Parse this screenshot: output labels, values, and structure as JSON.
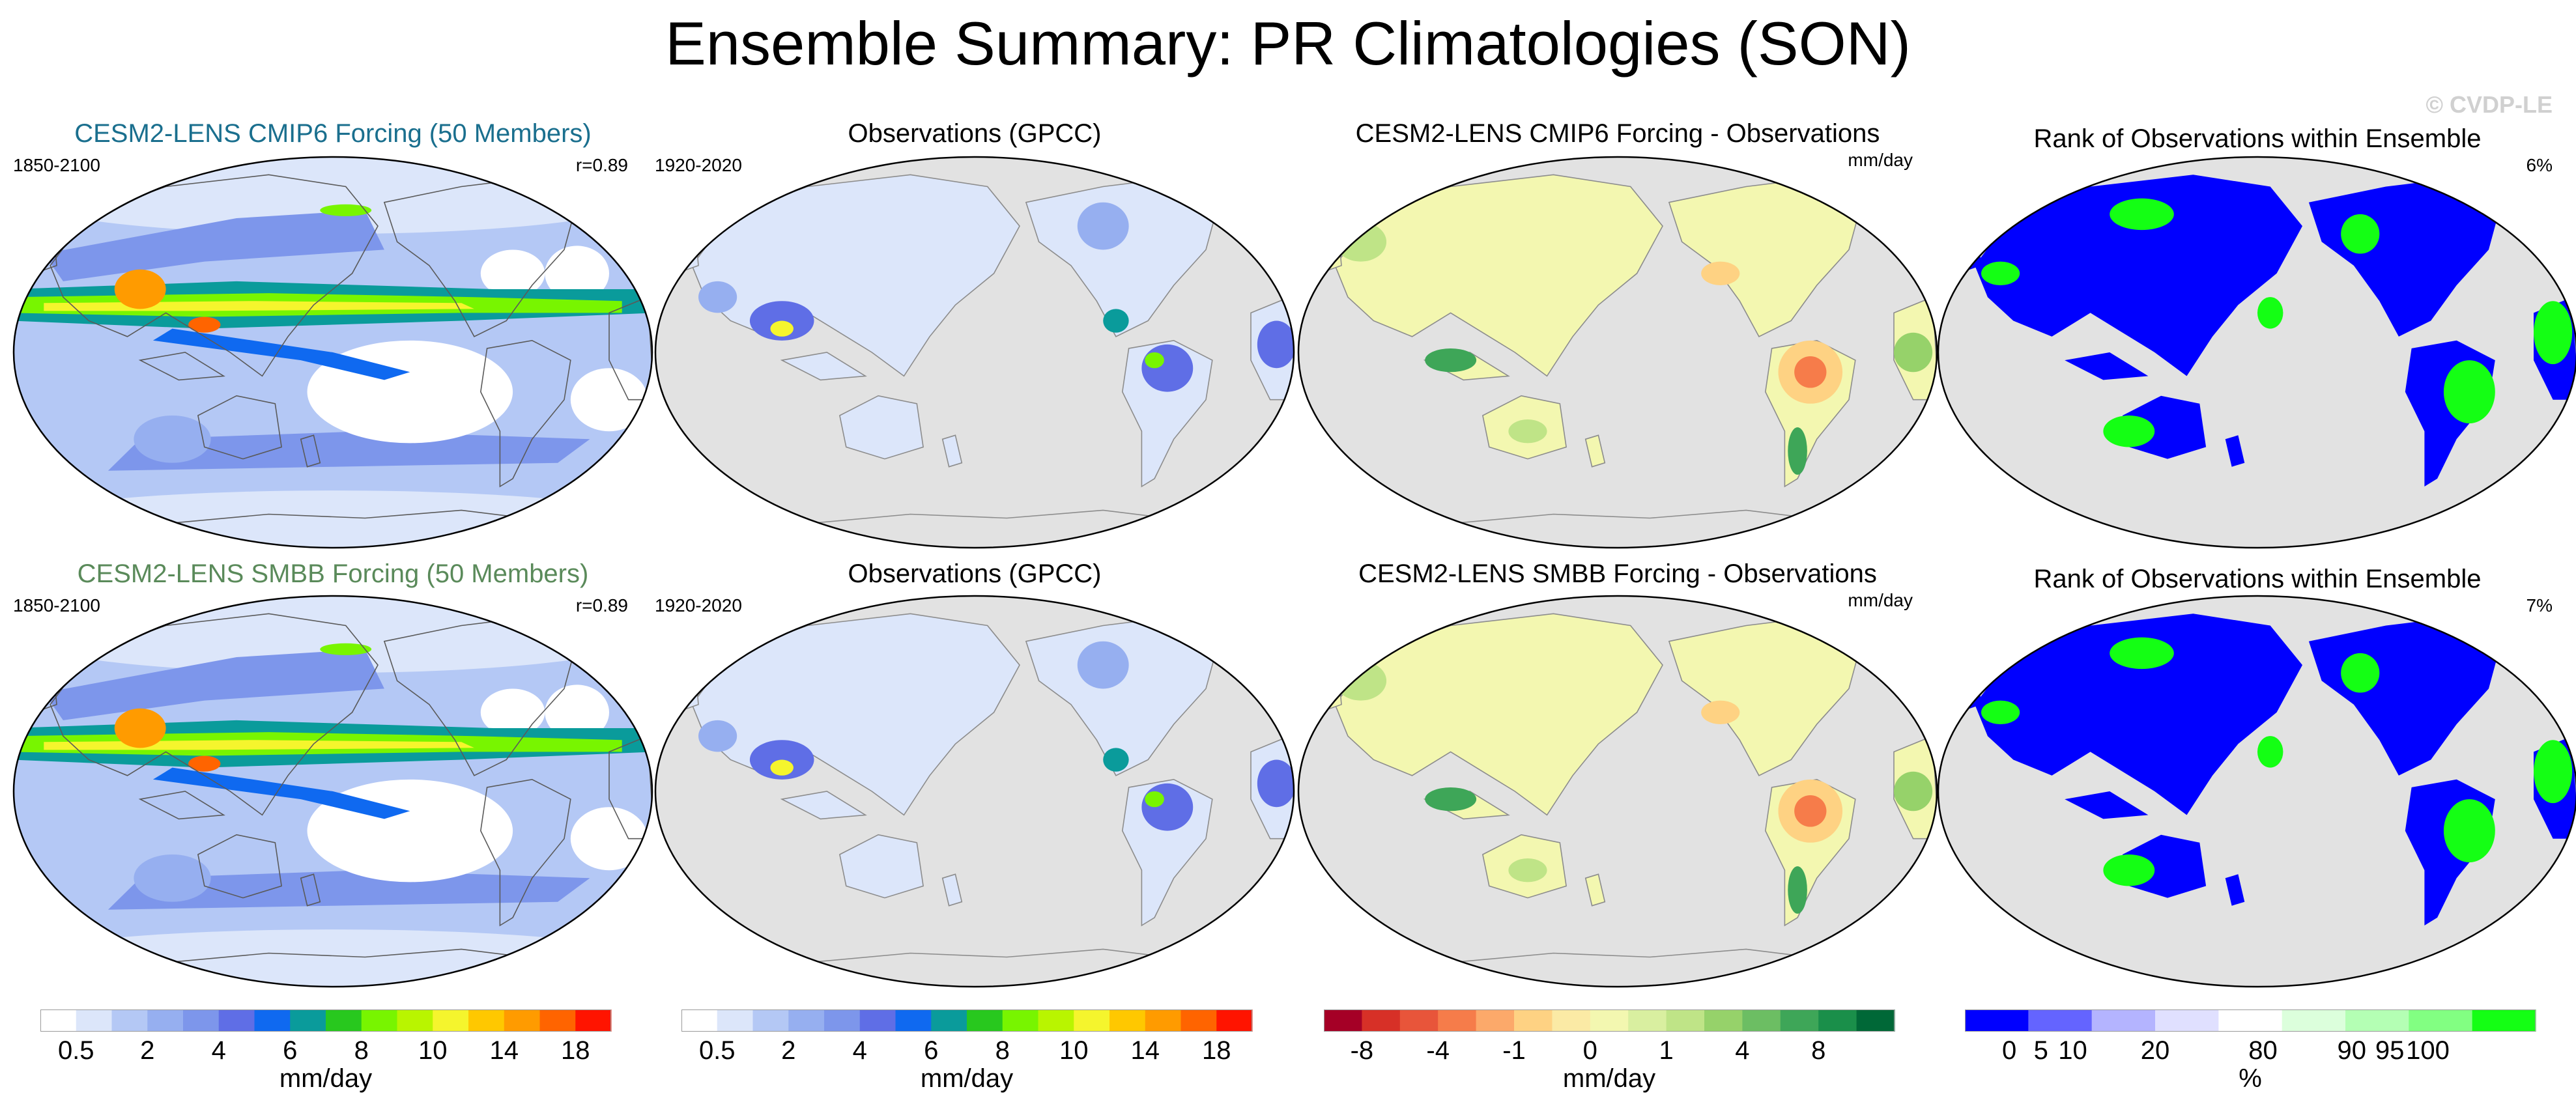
{
  "title": "Ensemble Summary: PR Climatologies (SON)",
  "watermark": "© CVDP-LE",
  "colors": {
    "ocean": "#e2e2e2",
    "coast": "#8c8c8c",
    "model1_title": "#1a6f8e",
    "model2_title": "#5a8a5a",
    "black": "#000000"
  },
  "rows": [
    {
      "panels": [
        {
          "title": "CESM2-LENS CMIP6 Forcing (50 Members)",
          "left": "1850-2100",
          "right": "r=0.89",
          "kind": "clim_model",
          "title_color_key": "model1_title"
        },
        {
          "title": "Observations (GPCC)",
          "left": "1920-2020",
          "right": "",
          "kind": "clim_obs",
          "title_color_key": "black"
        },
        {
          "title": "CESM2-LENS CMIP6 Forcing - Observations",
          "left": "",
          "right": "mm/day",
          "kind": "diff",
          "title_color_key": "black"
        },
        {
          "title": "Rank of Observations within Ensemble",
          "left": "",
          "right": "6%",
          "kind": "rank",
          "title_color_key": "black"
        }
      ]
    },
    {
      "panels": [
        {
          "title": "CESM2-LENS SMBB Forcing (50 Members)",
          "left": "1850-2100",
          "right": "r=0.89",
          "kind": "clim_model",
          "title_color_key": "model2_title"
        },
        {
          "title": "Observations (GPCC)",
          "left": "1920-2020",
          "right": "",
          "kind": "clim_obs",
          "title_color_key": "black"
        },
        {
          "title": "CESM2-LENS SMBB Forcing - Observations",
          "left": "",
          "right": "mm/day",
          "kind": "diff",
          "title_color_key": "black"
        },
        {
          "title": "Rank of Observations within Ensemble",
          "left": "",
          "right": "7%",
          "kind": "rank",
          "title_color_key": "black"
        }
      ]
    }
  ],
  "colorbars": [
    {
      "units": "mm/day",
      "colors": [
        "#ffffff",
        "#dce6fa",
        "#b4c8f5",
        "#96aff0",
        "#7d96eb",
        "#5f6ee6",
        "#0f69f0",
        "#0a9b9b",
        "#28c81e",
        "#78f500",
        "#b9f500",
        "#f5f52d",
        "#ffc800",
        "#ff9b00",
        "#ff6400",
        "#ff1400"
      ],
      "labels": [
        "0.5",
        "2",
        "4",
        "6",
        "8",
        "10",
        "14",
        "18"
      ],
      "label_edges": [
        1,
        3,
        5,
        7,
        9,
        11,
        13,
        15
      ]
    },
    {
      "units": "mm/day",
      "colors": [
        "#ffffff",
        "#dce6fa",
        "#b4c8f5",
        "#96aff0",
        "#7d96eb",
        "#5f6ee6",
        "#0f69f0",
        "#0a9b9b",
        "#28c81e",
        "#78f500",
        "#b9f500",
        "#f5f52d",
        "#ffc800",
        "#ff9b00",
        "#ff6400",
        "#ff1400"
      ],
      "labels": [
        "0.5",
        "2",
        "4",
        "6",
        "8",
        "10",
        "14",
        "18"
      ],
      "label_edges": [
        1,
        3,
        5,
        7,
        9,
        11,
        13,
        15
      ]
    },
    {
      "units": "mm/day",
      "colors": [
        "#a50026",
        "#d73027",
        "#e8553a",
        "#f67c4a",
        "#fca96a",
        "#fed283",
        "#fbeaa5",
        "#f3f7b0",
        "#d9efa0",
        "#bfe487",
        "#96d26a",
        "#6cbe63",
        "#3ea658",
        "#1a8f4a",
        "#006837"
      ],
      "labels": [
        "-8",
        "-4",
        "-1",
        "0",
        "1",
        "4",
        "8"
      ],
      "label_edges": [
        1,
        3,
        5,
        7,
        9,
        11,
        13
      ]
    },
    {
      "units": "%",
      "colors": [
        "#0000ff",
        "#6464ff",
        "#b4b4ff",
        "#e0e0ff",
        "#ffffff",
        "#dcffdc",
        "#b4ffb4",
        "#82ff82",
        "#14ff14"
      ],
      "labels": [
        "0",
        "5",
        "10",
        "20",
        "80",
        "90",
        "95",
        "100"
      ],
      "label_edges": [
        0.7,
        1.2,
        1.7,
        3,
        4.7,
        6.1,
        6.7,
        7.3
      ]
    }
  ]
}
